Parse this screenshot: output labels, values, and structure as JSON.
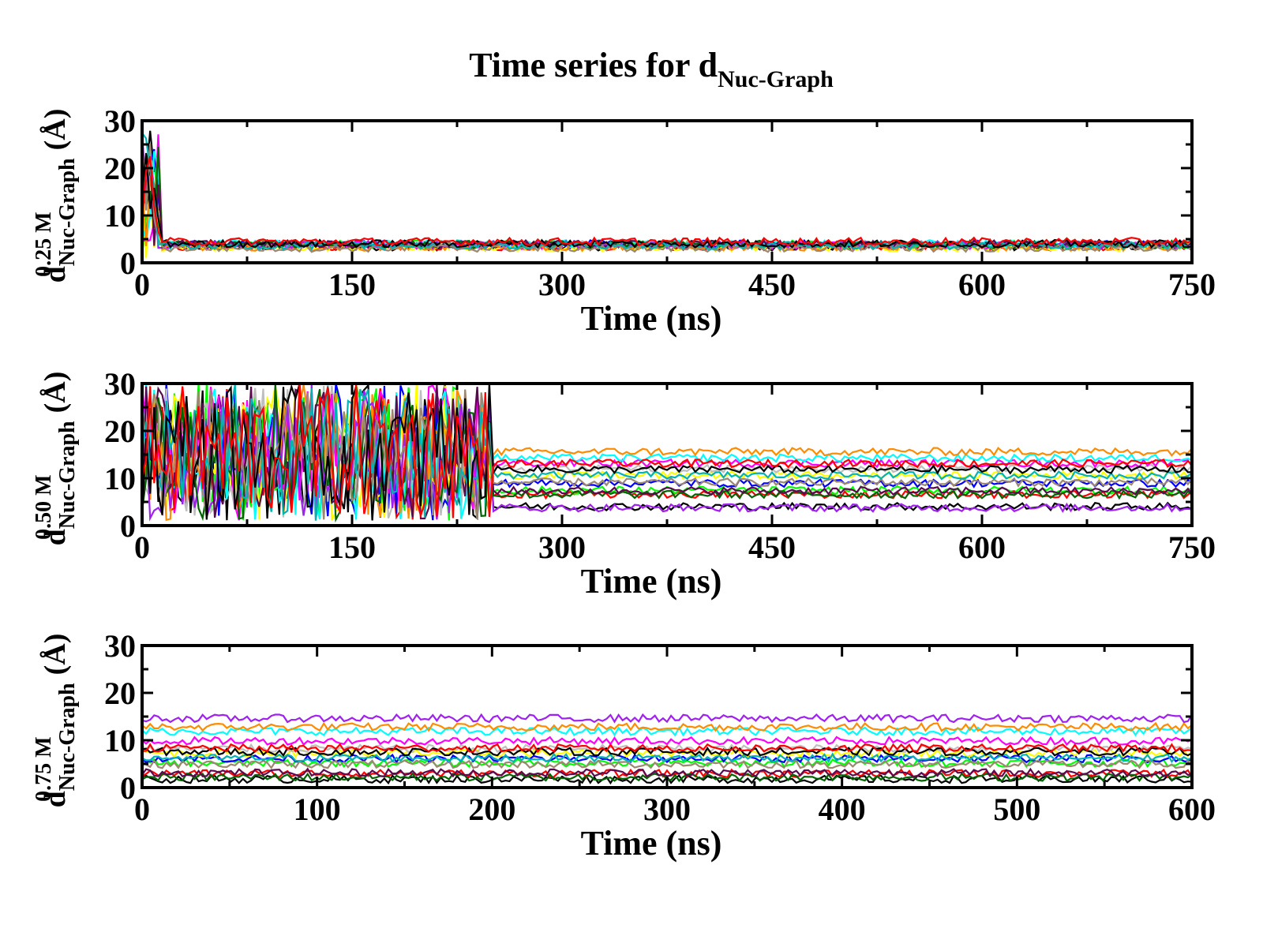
{
  "title": {
    "main": "Time series for d",
    "sub": "Nuc-Graph"
  },
  "colors": [
    "#000000",
    "#ff0000",
    "#00ff00",
    "#0000ff",
    "#ffff00",
    "#bebebe",
    "#ff00ff",
    "#00ffff",
    "#ff8c00",
    "#a020f0",
    "#006400",
    "#5c0a4f",
    "#9c8870",
    "#00b4b4"
  ],
  "chart_data": [
    {
      "type": "line",
      "panel": "0.25 M",
      "ylabel_prefix": "0.25 M",
      "ylabel_main": "d",
      "ylabel_sub": "Nuc-Graph",
      "ylabel_unit": "(Å)",
      "xlabel": "Time (ns)",
      "xlim": [
        0,
        750
      ],
      "ylim": [
        0,
        30
      ],
      "xticks": [
        "0",
        "150",
        "300",
        "450",
        "600",
        "750"
      ],
      "yticks": [
        "0",
        "10",
        "20",
        "30"
      ],
      "grid": false,
      "legend": "none",
      "series_count": 16,
      "description_levels_angstrom": [
        3.3,
        3.6,
        3.9,
        4.2
      ],
      "early_transient": {
        "t_end_ns": 12,
        "max_d": 28
      }
    },
    {
      "type": "line",
      "panel": "0.50 M",
      "ylabel_prefix": "0.50 M",
      "ylabel_main": "d",
      "ylabel_sub": "Nuc-Graph",
      "ylabel_unit": "(Å)",
      "xlabel": "Time (ns)",
      "xlim": [
        0,
        750
      ],
      "ylim": [
        0,
        30
      ],
      "xticks": [
        "0",
        "150",
        "300",
        "450",
        "600",
        "750"
      ],
      "yticks": [
        "0",
        "10",
        "20",
        "30"
      ],
      "grid": false,
      "legend": "none",
      "series_count": 16,
      "description_levels_angstrom": [
        3.8,
        6.5,
        7.5,
        9.0,
        10.5,
        12.0,
        13.0,
        14.0,
        15.5
      ],
      "early_transient": {
        "t_end_ns": 250,
        "max_d": 30
      }
    },
    {
      "type": "line",
      "panel": "0.75 M",
      "ylabel_prefix": "0.75 M",
      "ylabel_main": "d",
      "ylabel_sub": "Nuc-Graph",
      "ylabel_unit": "(Å)",
      "xlabel": "Time (ns)",
      "xlim": [
        0,
        600
      ],
      "ylim": [
        0,
        30
      ],
      "xticks": [
        "0",
        "100",
        "200",
        "300",
        "400",
        "500",
        "600"
      ],
      "yticks": [
        "0",
        "10",
        "20",
        "30"
      ],
      "grid": false,
      "legend": "none",
      "series_count": 16,
      "description_levels_angstrom": [
        2.0,
        3.0,
        5.0,
        6.0,
        7.5,
        8.5,
        10.0,
        12.0,
        13.0,
        14.5
      ],
      "early_transient": {
        "t_end_ns": 0,
        "max_d": 15
      }
    }
  ]
}
